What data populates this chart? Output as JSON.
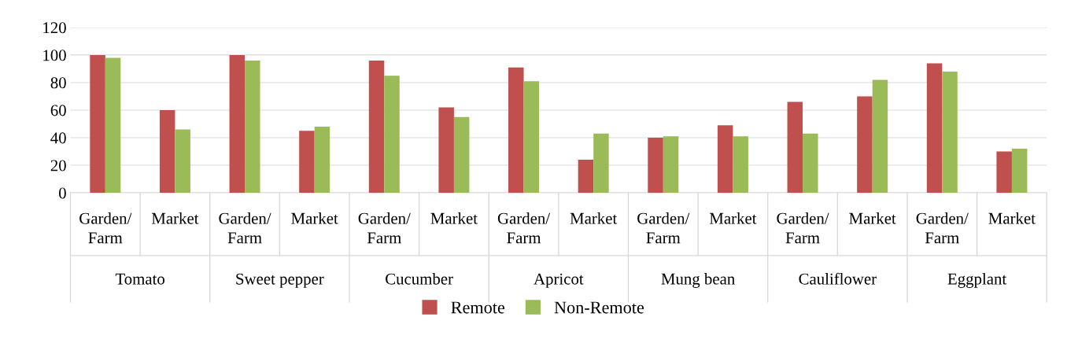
{
  "chart_data": {
    "type": "bar",
    "categories": [
      "Garden/ Farm",
      "Market",
      "Garden/ Farm",
      "Market",
      "Garden/ Farm",
      "Market",
      "Garden/ Farm",
      "Market",
      "Garden/ Farm",
      "Market",
      "Garden/ Farm",
      "Market",
      "Garden/ Farm",
      "Market"
    ],
    "annotations": [
      "Tomato",
      "Sweet pepper",
      "Cucumber",
      "Apricot",
      "Mung bean",
      "Cauliflower",
      "Eggplant"
    ],
    "series": [
      {
        "name": "Remote",
        "color": "#c0504d",
        "values": [
          100,
          60,
          100,
          45,
          96,
          62,
          91,
          24,
          40,
          49,
          66,
          70,
          94,
          30
        ]
      },
      {
        "name": "Non-Remote",
        "color": "#9bbb59",
        "values": [
          98,
          46,
          96,
          48,
          85,
          55,
          81,
          43,
          41,
          41,
          43,
          82,
          88,
          32
        ]
      }
    ],
    "ylim": [
      0,
      120
    ],
    "yticks": [
      0,
      20,
      40,
      60,
      80,
      100,
      120
    ],
    "grid": "y",
    "legend": "bottom"
  }
}
